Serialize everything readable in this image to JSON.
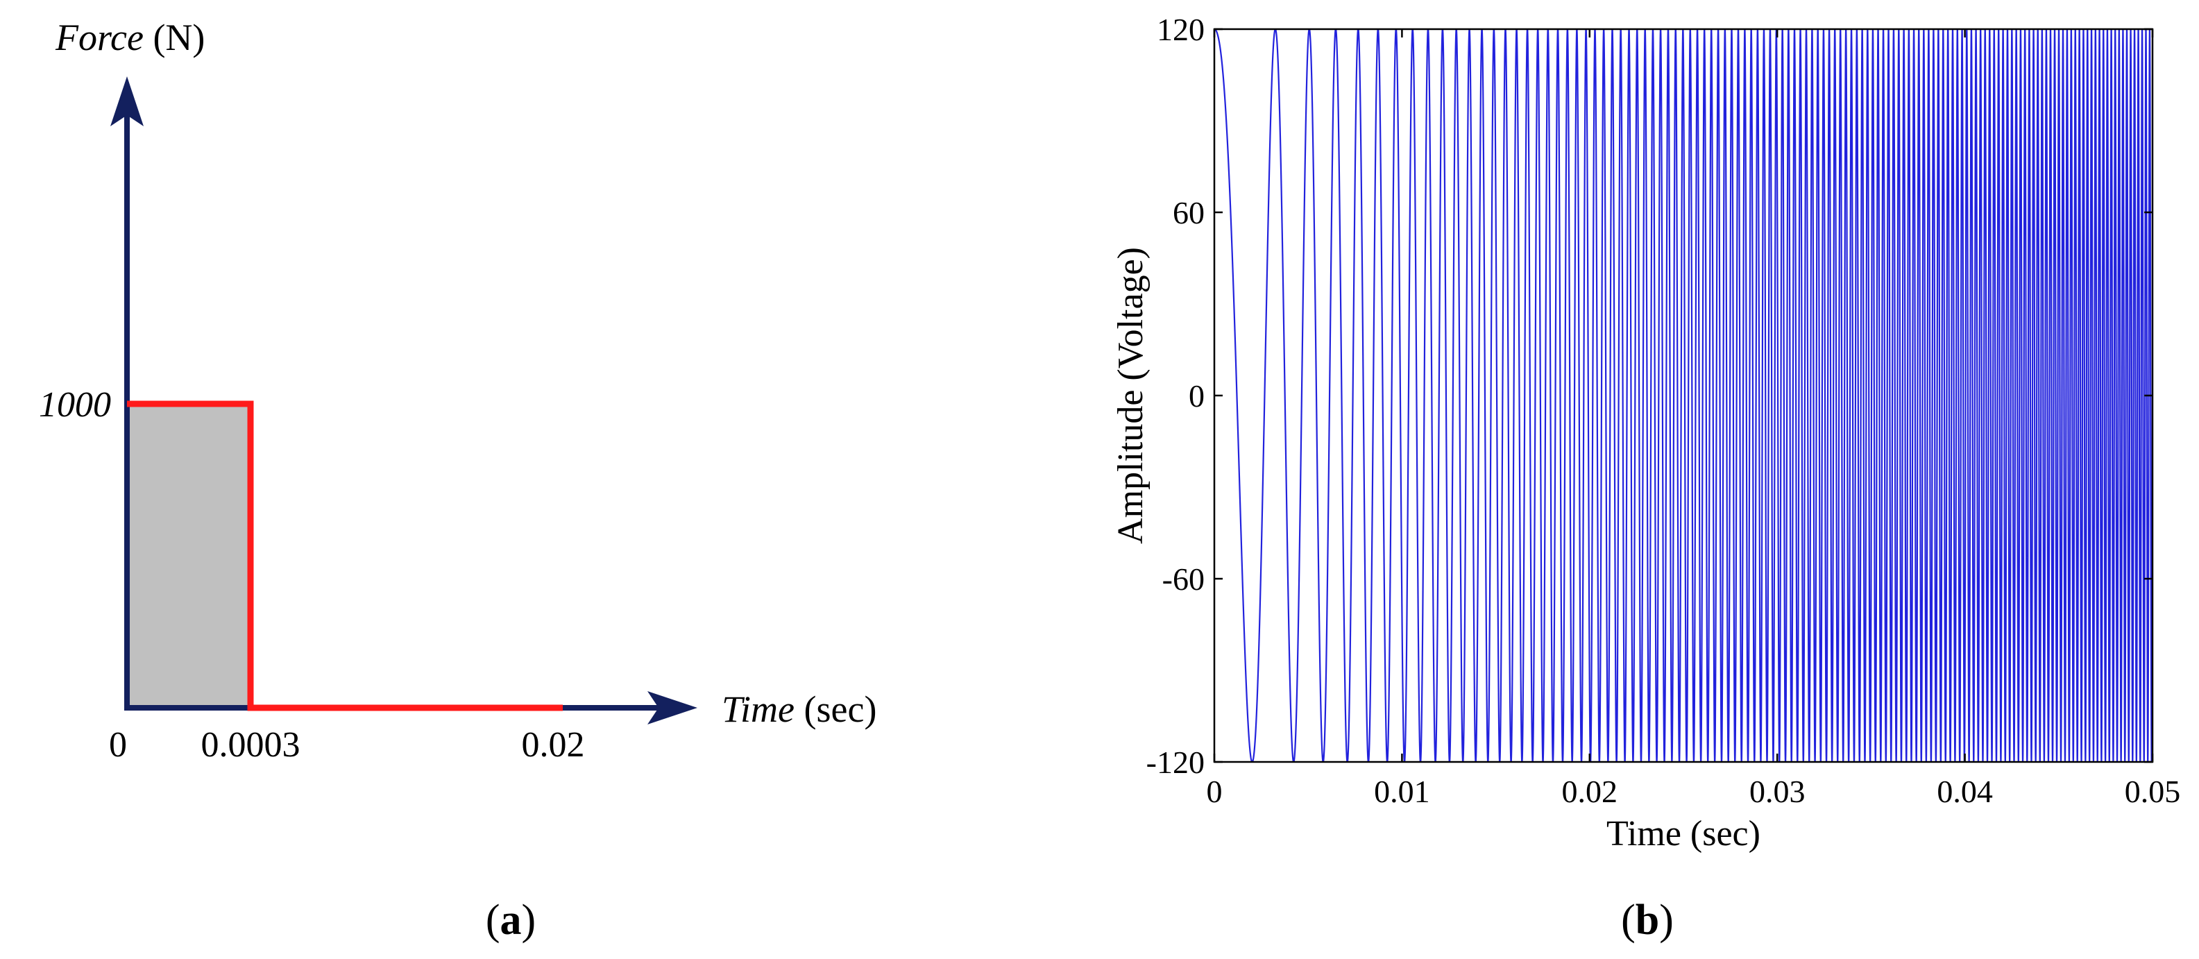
{
  "panel_labels": {
    "a": {
      "open": "(",
      "letter": "a",
      "close": ")"
    },
    "b": {
      "open": "(",
      "letter": "b",
      "close": ")"
    }
  },
  "colors": {
    "axis_navy": "#13205e",
    "pulse_red": "#ff1a1a",
    "pulse_fill": "#c0c0c0",
    "signal_blue": "#2222dd",
    "frame_black": "#000000"
  },
  "chart_data": [
    {
      "type": "line",
      "panel": "a",
      "xlabel": {
        "italic": "Time",
        "unit": "(sec)"
      },
      "ylabel": {
        "italic": "Force",
        "unit": "(N)"
      },
      "origin_label": "0",
      "x_tick_labels": [
        "0.0003",
        "0.02"
      ],
      "y_tick_labels": [
        "1000"
      ],
      "series": [
        {
          "x": [
            0,
            0.0003,
            0.0003,
            0.02
          ],
          "y": [
            1000,
            1000,
            0,
            0
          ]
        }
      ],
      "shaded_region": {
        "x": [
          0,
          0.0003
        ],
        "y": [
          0,
          1000
        ]
      }
    },
    {
      "type": "line",
      "panel": "b",
      "xlabel": "Time (sec)",
      "ylabel": "Amplitude (Voltage)",
      "xlim": [
        0,
        0.05
      ],
      "ylim": [
        -120,
        120
      ],
      "x_ticks": [
        0,
        0.01,
        0.02,
        0.03,
        0.04,
        0.05
      ],
      "x_tick_labels": [
        "0",
        "0.01",
        "0.02",
        "0.03",
        "0.04",
        "0.05"
      ],
      "y_ticks": [
        -120,
        -60,
        0,
        60,
        120
      ],
      "y_tick_labels": [
        "-120",
        "-60",
        "0",
        "60",
        "120"
      ],
      "grid": false,
      "series": [
        {
          "kind": "swept-sine (chirp)",
          "amplitude": 120,
          "start_frequency_hz": 150,
          "end_frequency_hz": 5000,
          "t_start": 0,
          "t_end": 0.05
        }
      ]
    }
  ]
}
